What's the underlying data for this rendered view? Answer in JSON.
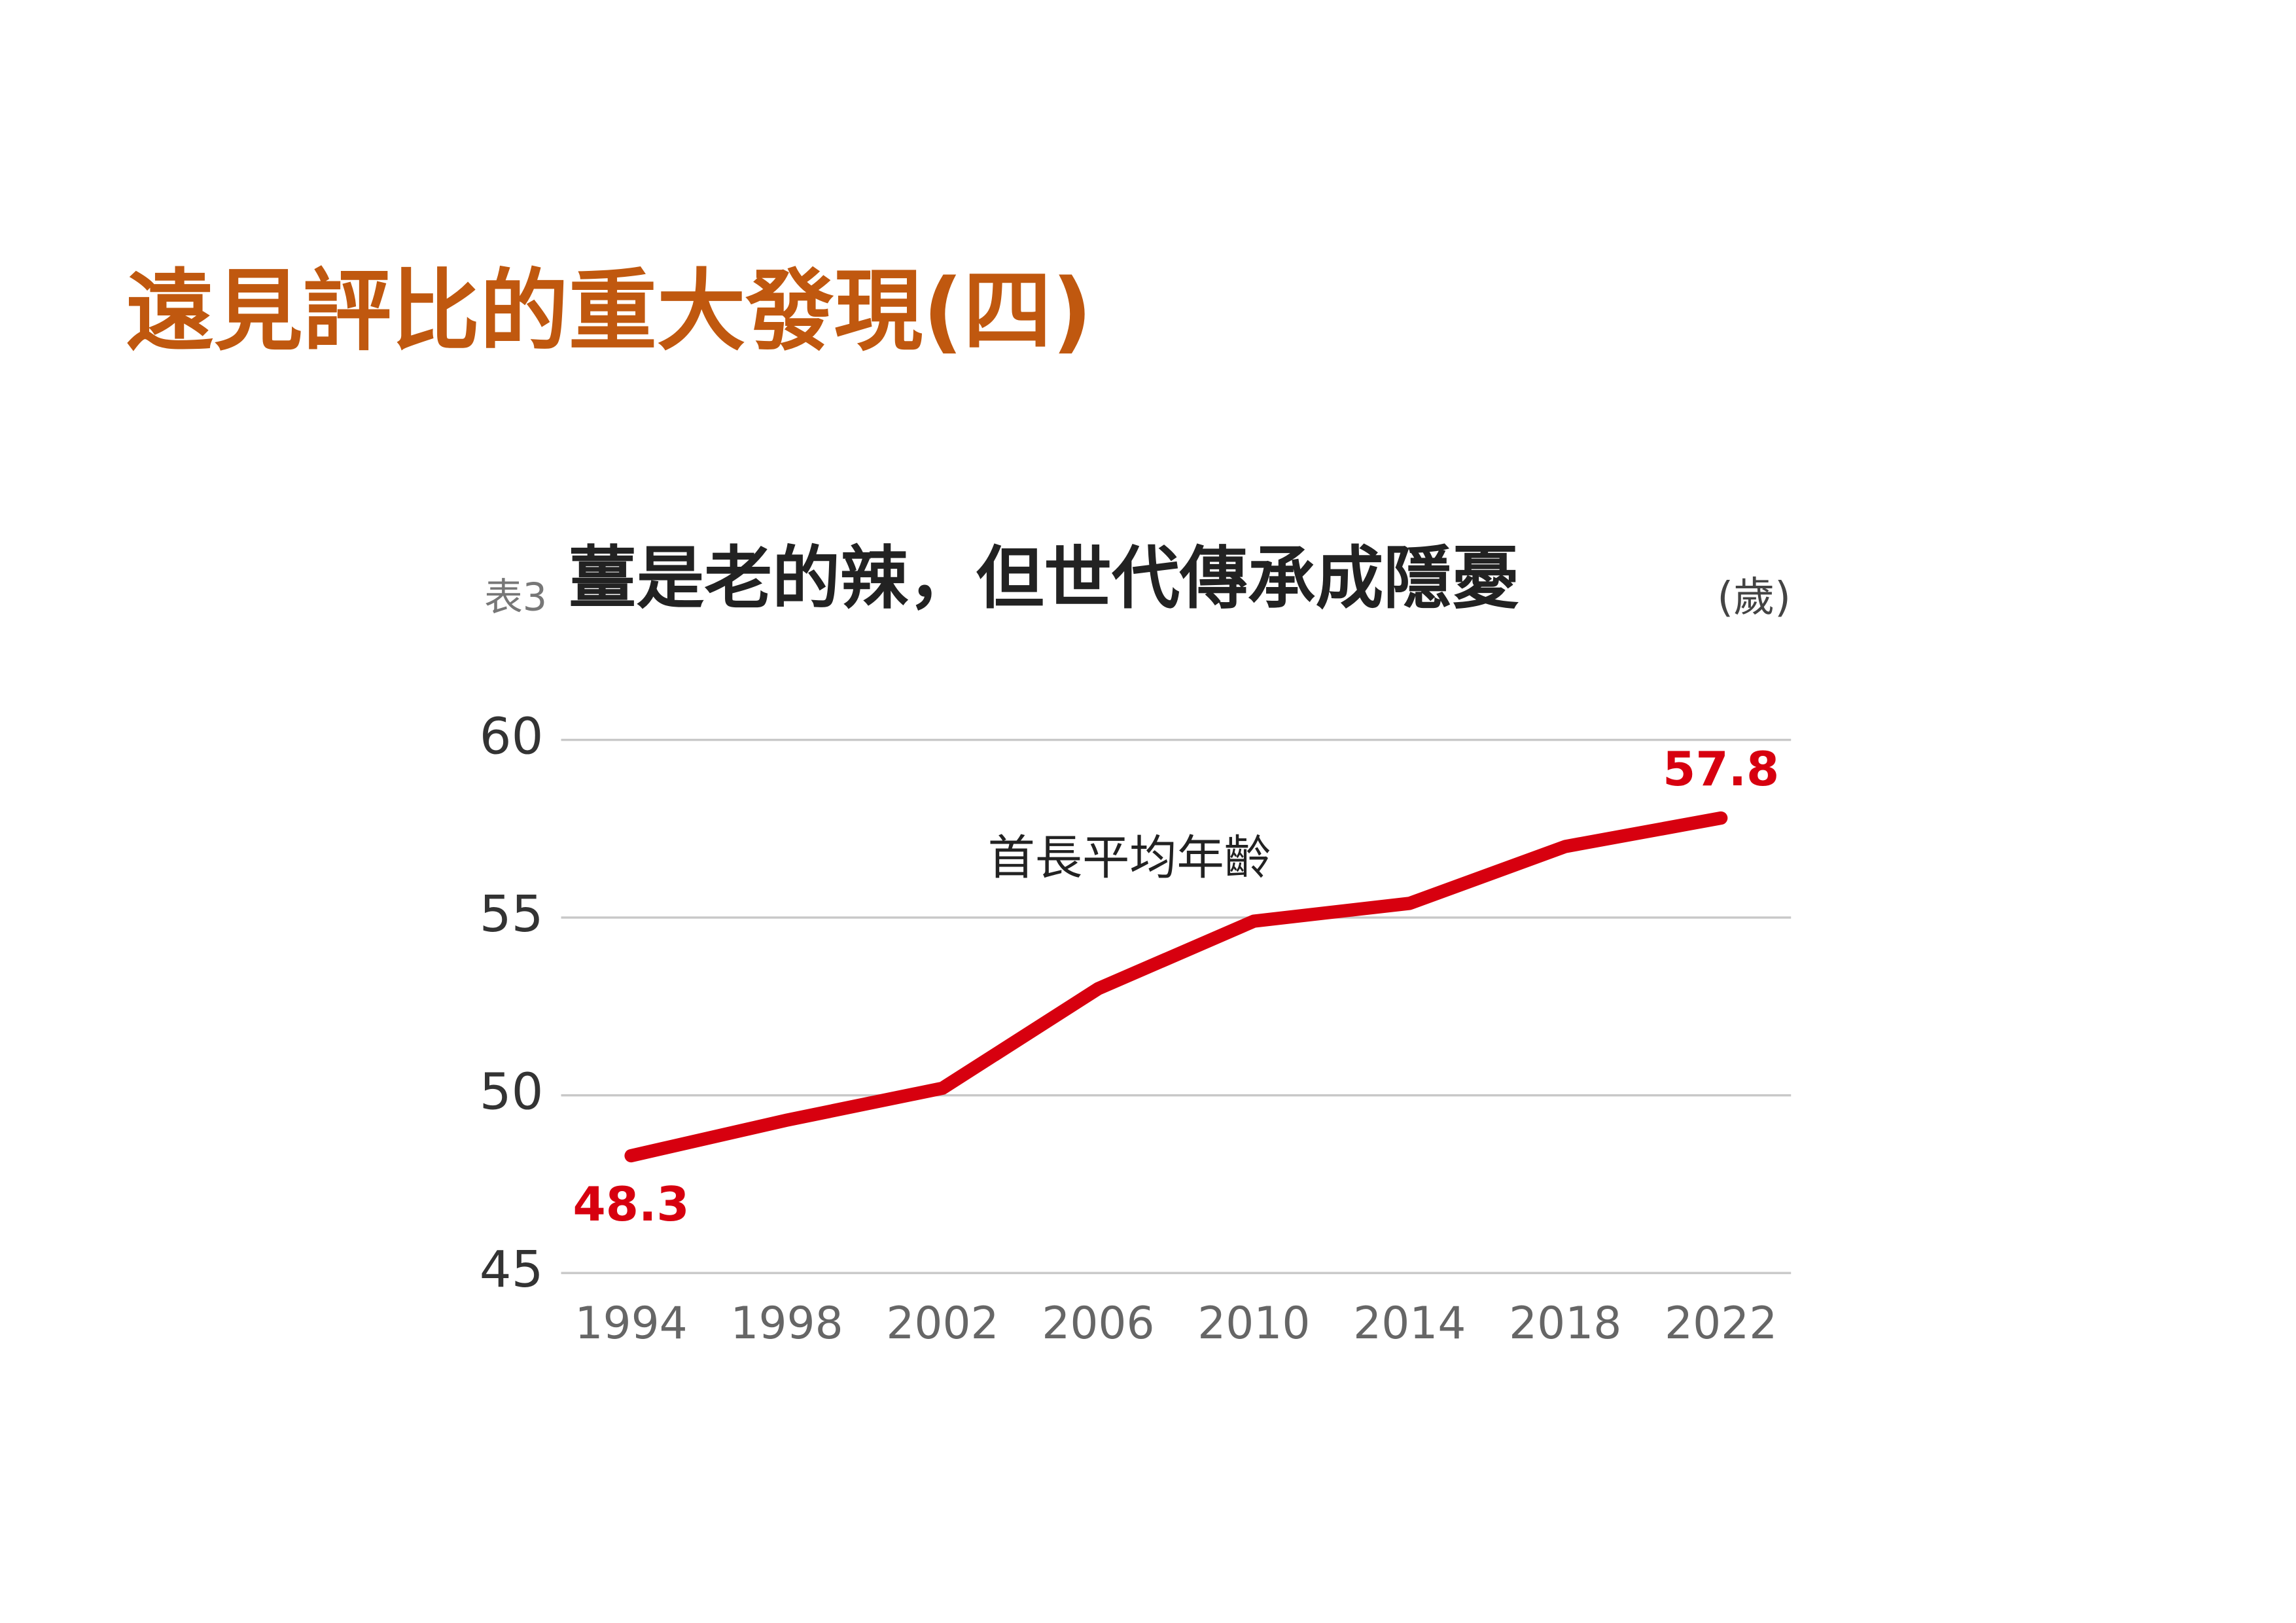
{
  "page_title": "遠見評比的重大發現(四)",
  "chart_data": {
    "type": "line",
    "label": "表3",
    "title": "薑是老的辣，但世代傳承成隱憂",
    "unit": "(歲)",
    "x": [
      1994,
      1998,
      2002,
      2006,
      2010,
      2014,
      2018,
      2022
    ],
    "series": [
      {
        "name": "首長平均年齡",
        "color": "#d7000f",
        "values": [
          48.3,
          49.3,
          50.2,
          53.0,
          54.9,
          55.4,
          57.0,
          57.8
        ]
      }
    ],
    "xlim": [
      1992.2,
      2023.8
    ],
    "xticks": [
      1994,
      1998,
      2002,
      2006,
      2010,
      2014,
      2018,
      2022
    ],
    "ylim": [
      45,
      60
    ],
    "yticks": [
      45,
      50,
      55,
      60
    ],
    "grid": true
  }
}
